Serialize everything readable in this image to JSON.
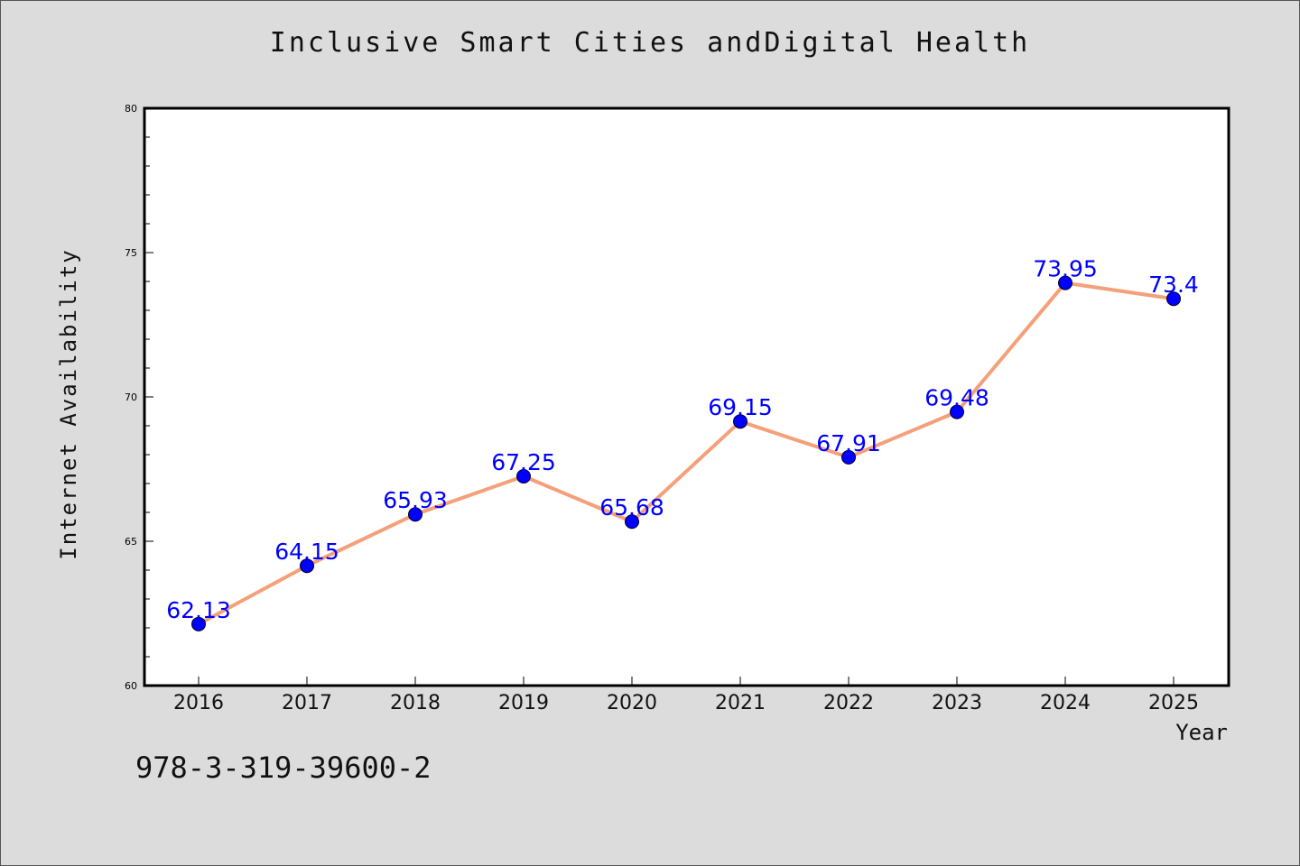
{
  "chart_data": {
    "type": "line",
    "title": "Inclusive Smart Cities andDigital Health",
    "xlabel": "Year",
    "ylabel": "Internet Availability",
    "categories": [
      "2016",
      "2017",
      "2018",
      "2019",
      "2020",
      "2021",
      "2022",
      "2023",
      "2024",
      "2025"
    ],
    "series": [
      {
        "values": [
          62.13,
          64.15,
          65.93,
          67.25,
          65.68,
          69.15,
          67.91,
          69.48,
          73.95,
          73.4
        ],
        "labels": [
          "62.13",
          "64.15",
          "65.93",
          "67.25",
          "65.68",
          "69.15",
          "67.91",
          "69.48",
          "73.95",
          "73.4"
        ],
        "line_color": "#f4a07a",
        "marker_color": "#0000ff",
        "label_color": "#0000ff"
      }
    ],
    "ylim": [
      60,
      80
    ],
    "yticks": [
      "60",
      "65",
      "70",
      "75",
      "80"
    ],
    "grid": false,
    "legend": "none"
  },
  "footer": {
    "isbn": "978-3-319-39600-2"
  },
  "colors": {
    "background": "#dcdcdc",
    "plot_background": "#ffffff",
    "axis": "#000000"
  }
}
